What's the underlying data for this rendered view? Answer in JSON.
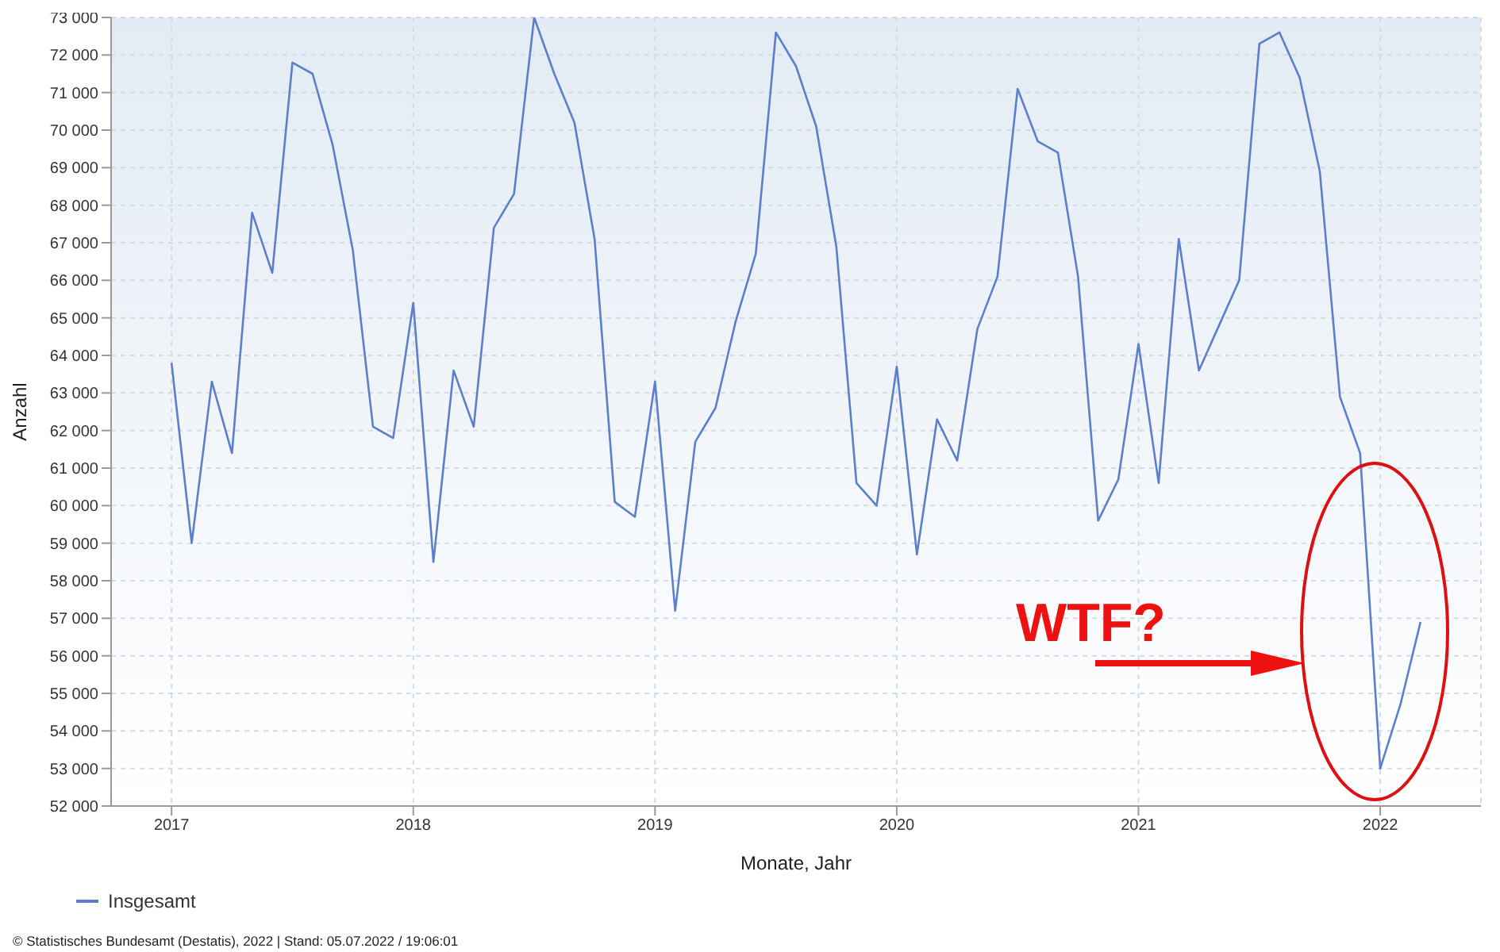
{
  "chart_data": {
    "type": "line",
    "xlabel": "Monate, Jahr",
    "ylabel": "Anzahl",
    "x": [
      "2017-01",
      "2017-02",
      "2017-03",
      "2017-04",
      "2017-05",
      "2017-06",
      "2017-07",
      "2017-08",
      "2017-09",
      "2017-10",
      "2017-11",
      "2017-12",
      "2018-01",
      "2018-02",
      "2018-03",
      "2018-04",
      "2018-05",
      "2018-06",
      "2018-07",
      "2018-08",
      "2018-09",
      "2018-10",
      "2018-11",
      "2018-12",
      "2019-01",
      "2019-02",
      "2019-03",
      "2019-04",
      "2019-05",
      "2019-06",
      "2019-07",
      "2019-08",
      "2019-09",
      "2019-10",
      "2019-11",
      "2019-12",
      "2020-01",
      "2020-02",
      "2020-03",
      "2020-04",
      "2020-05",
      "2020-06",
      "2020-07",
      "2020-08",
      "2020-09",
      "2020-10",
      "2020-11",
      "2020-12",
      "2021-01",
      "2021-02",
      "2021-03",
      "2021-04",
      "2021-05",
      "2021-06",
      "2021-07",
      "2021-08",
      "2021-09",
      "2021-10",
      "2021-11",
      "2021-12",
      "2022-01",
      "2022-02",
      "2022-03"
    ],
    "series": [
      {
        "name": "Insgesamt",
        "color": "#5b7fcc",
        "values": [
          63800,
          59000,
          63300,
          61400,
          67800,
          66200,
          71800,
          71500,
          69600,
          66800,
          62100,
          61800,
          65400,
          58500,
          63600,
          62100,
          67400,
          68300,
          73000,
          71500,
          70200,
          67100,
          60100,
          59700,
          63300,
          57200,
          61700,
          62600,
          64900,
          66700,
          72600,
          71700,
          70100,
          66900,
          60600,
          60000,
          63700,
          58700,
          62300,
          61200,
          64700,
          66100,
          71100,
          69700,
          69400,
          66100,
          59600,
          60700,
          64300,
          60600,
          67100,
          63600,
          64800,
          66000,
          72300,
          72600,
          71400,
          68900,
          62900,
          61400,
          53000,
          54700,
          56900
        ]
      }
    ],
    "xlim": [
      "2016-10",
      "2022-06"
    ],
    "xticks": [
      "2017",
      "2018",
      "2019",
      "2020",
      "2021",
      "2022"
    ],
    "ylim": [
      52000,
      73000
    ],
    "yticks": [
      {
        "value": 52000,
        "label": "52 000"
      },
      {
        "value": 53000,
        "label": "53 000"
      },
      {
        "value": 54000,
        "label": "54 000"
      },
      {
        "value": 55000,
        "label": "55 000"
      },
      {
        "value": 56000,
        "label": "56 000"
      },
      {
        "value": 57000,
        "label": "57 000"
      },
      {
        "value": 58000,
        "label": "58 000"
      },
      {
        "value": 59000,
        "label": "59 000"
      },
      {
        "value": 60000,
        "label": "60 000"
      },
      {
        "value": 61000,
        "label": "61 000"
      },
      {
        "value": 62000,
        "label": "62 000"
      },
      {
        "value": 63000,
        "label": "63 000"
      },
      {
        "value": 64000,
        "label": "64 000"
      },
      {
        "value": 65000,
        "label": "65 000"
      },
      {
        "value": 66000,
        "label": "66 000"
      },
      {
        "value": 67000,
        "label": "67 000"
      },
      {
        "value": 68000,
        "label": "68 000"
      },
      {
        "value": 69000,
        "label": "69 000"
      },
      {
        "value": 70000,
        "label": "70 000"
      },
      {
        "value": 71000,
        "label": "71 000"
      },
      {
        "value": 72000,
        "label": "72 000"
      },
      {
        "value": 73000,
        "label": "73 000"
      }
    ],
    "grid": true,
    "legend": "bottom",
    "marker": "none",
    "line_style": "solid",
    "annotations": [
      "WTF?",
      "© Statistisches Bundesamt (Destatis), 2022 | Stand: 05.07.2022 / 19:06:01"
    ]
  }
}
